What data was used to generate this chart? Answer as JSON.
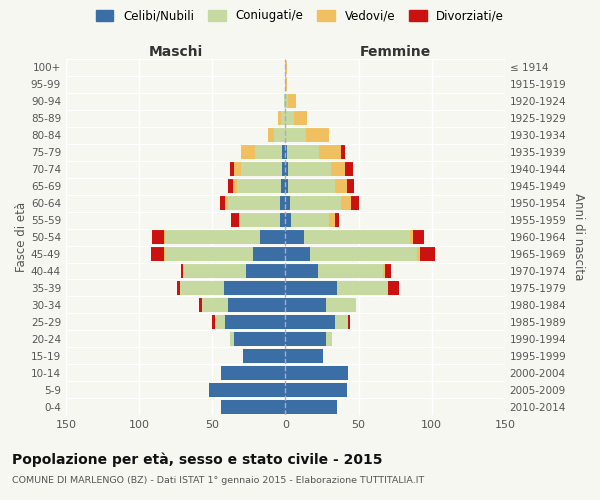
{
  "age_groups": [
    "100+",
    "95-99",
    "90-94",
    "85-89",
    "80-84",
    "75-79",
    "70-74",
    "65-69",
    "60-64",
    "55-59",
    "50-54",
    "45-49",
    "40-44",
    "35-39",
    "30-34",
    "25-29",
    "20-24",
    "15-19",
    "10-14",
    "5-9",
    "0-4"
  ],
  "birth_years": [
    "≤ 1914",
    "1915-1919",
    "1920-1924",
    "1925-1929",
    "1930-1934",
    "1935-1939",
    "1940-1944",
    "1945-1949",
    "1950-1954",
    "1955-1959",
    "1960-1964",
    "1965-1969",
    "1970-1974",
    "1975-1979",
    "1980-1984",
    "1985-1989",
    "1990-1994",
    "1995-1999",
    "2000-2004",
    "2005-2009",
    "2010-2014"
  ],
  "males": {
    "celibe": [
      0,
      0,
      0,
      0,
      0,
      2,
      2,
      3,
      4,
      4,
      17,
      22,
      27,
      42,
      39,
      41,
      35,
      29,
      44,
      52,
      44
    ],
    "coniugato": [
      0,
      0,
      1,
      3,
      8,
      19,
      28,
      30,
      35,
      27,
      65,
      60,
      42,
      30,
      18,
      7,
      3,
      0,
      0,
      0,
      0
    ],
    "vedovo": [
      0,
      0,
      0,
      2,
      4,
      9,
      5,
      3,
      2,
      1,
      1,
      1,
      1,
      0,
      0,
      0,
      0,
      0,
      0,
      0,
      0
    ],
    "divorziato": [
      0,
      0,
      0,
      0,
      0,
      0,
      3,
      3,
      4,
      5,
      8,
      9,
      1,
      2,
      2,
      2,
      0,
      0,
      0,
      0,
      0
    ]
  },
  "females": {
    "nubile": [
      0,
      0,
      0,
      0,
      0,
      1,
      2,
      2,
      3,
      4,
      13,
      17,
      22,
      35,
      28,
      34,
      28,
      26,
      43,
      42,
      35
    ],
    "coniugata": [
      0,
      0,
      2,
      6,
      14,
      22,
      29,
      32,
      35,
      26,
      72,
      73,
      45,
      35,
      20,
      9,
      4,
      0,
      0,
      0,
      0
    ],
    "vedova": [
      1,
      1,
      5,
      9,
      16,
      15,
      10,
      8,
      7,
      4,
      2,
      2,
      1,
      0,
      0,
      0,
      0,
      0,
      0,
      0,
      0
    ],
    "divorziata": [
      0,
      0,
      0,
      0,
      0,
      3,
      5,
      5,
      5,
      3,
      8,
      10,
      4,
      8,
      0,
      1,
      0,
      0,
      0,
      0,
      0
    ]
  },
  "colors": {
    "celibe": "#3a6ea5",
    "coniugato": "#c5d9a0",
    "vedovo": "#f0c060",
    "divorziato": "#cc1111"
  },
  "xlim": 150,
  "title": "Popolazione per età, sesso e stato civile - 2015",
  "subtitle": "COMUNE DI MARLENGO (BZ) - Dati ISTAT 1° gennaio 2015 - Elaborazione TUTTITALIA.IT",
  "ylabel_left": "Fasce di età",
  "ylabel_right": "Anni di nascita",
  "xlabel_left": "Maschi",
  "xlabel_right": "Femmine",
  "bg_color": "#f7f7f2",
  "legend_labels": [
    "Celibi/Nubili",
    "Coniugati/e",
    "Vedovi/e",
    "Divorziati/e"
  ]
}
